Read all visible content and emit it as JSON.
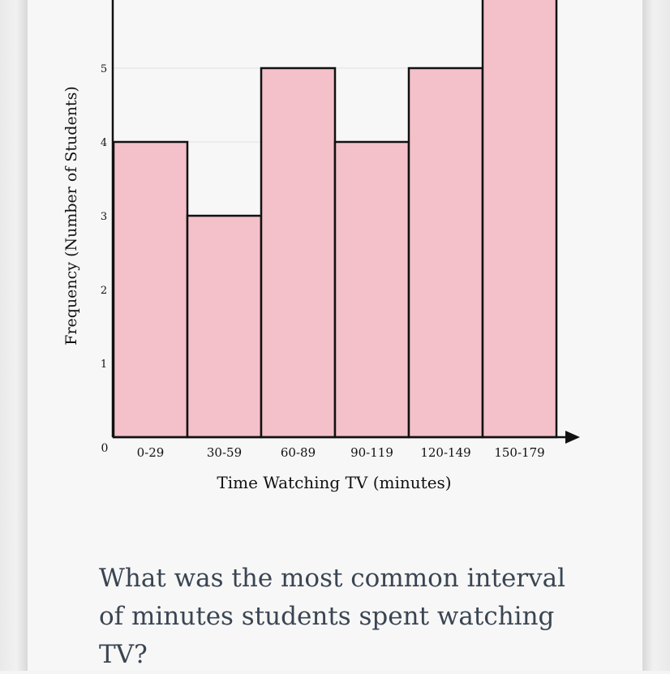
{
  "chart_data": {
    "type": "bar",
    "categories": [
      "0-29",
      "30-59",
      "60-89",
      "90-119",
      "120-149",
      "150-179"
    ],
    "values": [
      4,
      3,
      5,
      4,
      5,
      6
    ],
    "xlabel": "Time Watching TV (minutes)",
    "ylabel": "Frequency (Number of Students)",
    "ylim": [
      0,
      6
    ],
    "yticks": [
      "1",
      "2",
      "3",
      "4",
      "5"
    ],
    "origin_label": "0",
    "grid": true,
    "bar_color": "#f4c0ca",
    "bar_stroke": "#111111"
  },
  "question": {
    "text": "What was the most common interval of minutes students spent watching TV?"
  }
}
